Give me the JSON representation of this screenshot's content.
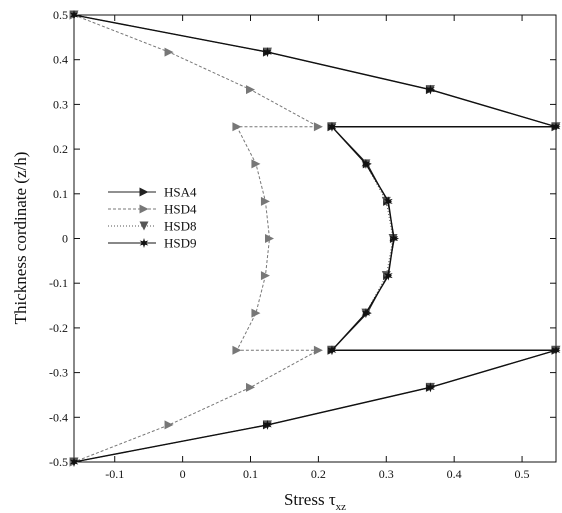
{
  "chart_data": {
    "type": "line",
    "title": "",
    "xlabel": "Stress τ",
    "xlabel_subscript": "xz",
    "ylabel": "Thickness cordinate (z/h)",
    "xlim": [
      -0.16,
      0.55
    ],
    "ylim": [
      -0.5,
      0.5
    ],
    "xticks": [
      -0.1,
      0,
      0.1,
      0.2,
      0.3,
      0.4,
      0.5
    ],
    "xtick_labels": [
      "-0.1",
      "0",
      "0.1",
      "0.2",
      "0.3",
      "0.4",
      "0.5"
    ],
    "yticks": [
      -0.5,
      -0.4,
      -0.3,
      -0.2,
      -0.1,
      0,
      0.1,
      0.2,
      0.3,
      0.4,
      0.5
    ],
    "ytick_labels": [
      "-0.5",
      "-0.4",
      "-0.3",
      "-0.2",
      "-0.1",
      "0",
      "0.1",
      "0.2",
      "0.3",
      "0.4",
      "0.5"
    ],
    "grid": false,
    "legend_position": "middle-left",
    "series": [
      {
        "name": "HSA4",
        "marker": "triangle-right",
        "color": "#222222",
        "points": [
          [
            -0.16,
            0.5
          ],
          [
            0.125,
            0.417
          ],
          [
            0.365,
            0.333
          ],
          [
            0.55,
            0.25
          ],
          [
            0.22,
            0.25
          ],
          [
            0.272,
            0.167
          ],
          [
            0.302,
            0.083
          ],
          [
            0.312,
            0.0
          ],
          [
            0.302,
            -0.083
          ],
          [
            0.272,
            -0.167
          ],
          [
            0.22,
            -0.25
          ],
          [
            0.55,
            -0.25
          ],
          [
            0.365,
            -0.333
          ],
          [
            0.125,
            -0.417
          ],
          [
            -0.16,
            -0.5
          ]
        ]
      },
      {
        "name": "HSD4",
        "marker": "triangle-right",
        "color": "#777777",
        "points": [
          [
            -0.16,
            0.5
          ],
          [
            -0.02,
            0.417
          ],
          [
            0.1,
            0.333
          ],
          [
            0.2,
            0.25
          ],
          [
            0.08,
            0.25
          ],
          [
            0.108,
            0.167
          ],
          [
            0.122,
            0.083
          ],
          [
            0.128,
            0.0
          ],
          [
            0.122,
            -0.083
          ],
          [
            0.108,
            -0.167
          ],
          [
            0.08,
            -0.25
          ],
          [
            0.2,
            -0.25
          ],
          [
            0.1,
            -0.333
          ],
          [
            -0.02,
            -0.417
          ],
          [
            -0.16,
            -0.5
          ]
        ]
      },
      {
        "name": "HSD8",
        "marker": "triangle-down",
        "color": "#555555",
        "points": [
          [
            -0.16,
            0.5
          ],
          [
            0.125,
            0.417
          ],
          [
            0.365,
            0.333
          ],
          [
            0.55,
            0.25
          ],
          [
            0.22,
            0.25
          ],
          [
            0.27,
            0.167
          ],
          [
            0.3,
            0.083
          ],
          [
            0.31,
            0.0
          ],
          [
            0.3,
            -0.083
          ],
          [
            0.27,
            -0.167
          ],
          [
            0.22,
            -0.25
          ],
          [
            0.55,
            -0.25
          ],
          [
            0.365,
            -0.333
          ],
          [
            0.125,
            -0.417
          ],
          [
            -0.16,
            -0.5
          ]
        ]
      },
      {
        "name": "HSD9",
        "marker": "star",
        "color": "#111111",
        "points": [
          [
            -0.16,
            0.5
          ],
          [
            0.125,
            0.417
          ],
          [
            0.365,
            0.333
          ],
          [
            0.55,
            0.25
          ],
          [
            0.22,
            0.25
          ],
          [
            0.27,
            0.167
          ],
          [
            0.303,
            0.083
          ],
          [
            0.311,
            0.0
          ],
          [
            0.303,
            -0.083
          ],
          [
            0.27,
            -0.167
          ],
          [
            0.22,
            -0.25
          ],
          [
            0.55,
            -0.25
          ],
          [
            0.365,
            -0.333
          ],
          [
            0.125,
            -0.417
          ],
          [
            -0.16,
            -0.5
          ]
        ]
      }
    ]
  }
}
